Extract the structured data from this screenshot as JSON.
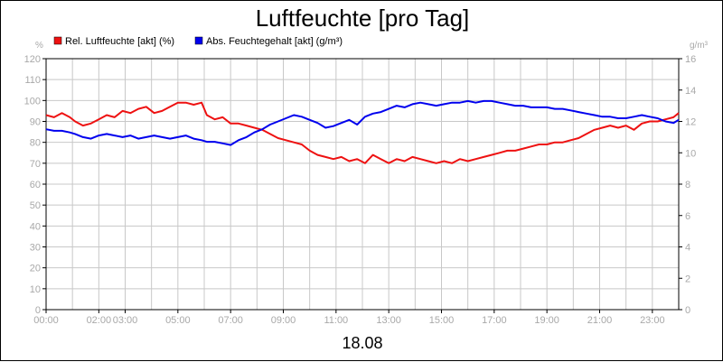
{
  "chart_data": {
    "type": "line",
    "title": "Luftfeuchte [pro Tag]",
    "date_label": "18.08",
    "grid": true,
    "legend_position": "top-left",
    "xlim": [
      0,
      24
    ],
    "left_axis": {
      "unit": "%",
      "ylim": [
        0,
        120
      ],
      "ticks": [
        0,
        10,
        20,
        30,
        40,
        50,
        60,
        70,
        80,
        90,
        100,
        110,
        120
      ]
    },
    "right_axis": {
      "unit": "g/m³",
      "ylim": [
        0,
        16
      ],
      "ticks": [
        0,
        2,
        4,
        6,
        8,
        10,
        12,
        14,
        16
      ]
    },
    "x_ticks": [
      {
        "label": "00:00",
        "value": 0
      },
      {
        "label": "02:00",
        "value": 2
      },
      {
        "label": "03:00",
        "value": 3
      },
      {
        "label": "05:00",
        "value": 5
      },
      {
        "label": "07:00",
        "value": 7
      },
      {
        "label": "09:00",
        "value": 9
      },
      {
        "label": "11:00",
        "value": 11
      },
      {
        "label": "13:00",
        "value": 13
      },
      {
        "label": "15:00",
        "value": 15
      },
      {
        "label": "17:00",
        "value": 17
      },
      {
        "label": "19:00",
        "value": 19
      },
      {
        "label": "21:00",
        "value": 21
      },
      {
        "label": "23:00",
        "value": 23
      }
    ],
    "series": [
      {
        "name": "Rel. Luftfeuchte [akt] (%)",
        "axis": "left",
        "color": "#ee1111",
        "x": [
          0,
          0.3,
          0.6,
          0.9,
          1.1,
          1.4,
          1.7,
          2.0,
          2.3,
          2.6,
          2.9,
          3.2,
          3.5,
          3.8,
          4.1,
          4.4,
          4.7,
          5.0,
          5.3,
          5.6,
          5.9,
          6.1,
          6.4,
          6.7,
          7.0,
          7.3,
          7.6,
          7.9,
          8.2,
          8.5,
          8.8,
          9.1,
          9.4,
          9.7,
          10.0,
          10.3,
          10.6,
          10.9,
          11.2,
          11.5,
          11.8,
          12.1,
          12.4,
          12.7,
          13.0,
          13.3,
          13.6,
          13.9,
          14.2,
          14.5,
          14.8,
          15.1,
          15.4,
          15.7,
          16.0,
          16.3,
          16.6,
          16.9,
          17.2,
          17.5,
          17.8,
          18.1,
          18.4,
          18.7,
          19.0,
          19.3,
          19.6,
          19.9,
          20.2,
          20.5,
          20.8,
          21.1,
          21.4,
          21.7,
          22.0,
          22.3,
          22.6,
          22.9,
          23.2,
          23.5,
          23.8,
          24.0
        ],
        "values": [
          93,
          92,
          94,
          92,
          90,
          88,
          89,
          91,
          93,
          92,
          95,
          94,
          96,
          97,
          94,
          95,
          97,
          99,
          99,
          98,
          99,
          93,
          91,
          92,
          89,
          89,
          88,
          87,
          86,
          84,
          82,
          81,
          80,
          79,
          76,
          74,
          73,
          72,
          73,
          71,
          72,
          70,
          74,
          72,
          70,
          72,
          71,
          73,
          72,
          71,
          70,
          71,
          70,
          72,
          71,
          72,
          73,
          74,
          75,
          76,
          76,
          77,
          78,
          79,
          79,
          80,
          80,
          81,
          82,
          84,
          86,
          87,
          88,
          87,
          88,
          86,
          89,
          90,
          90,
          91,
          92,
          94
        ]
      },
      {
        "name": "Abs. Feuchtegehalt [akt] (g/m³)",
        "axis": "right",
        "color": "#0000ee",
        "x": [
          0,
          0.3,
          0.6,
          0.9,
          1.1,
          1.4,
          1.7,
          2.0,
          2.3,
          2.6,
          2.9,
          3.2,
          3.5,
          3.8,
          4.1,
          4.4,
          4.7,
          5.0,
          5.3,
          5.6,
          5.9,
          6.1,
          6.4,
          6.7,
          7.0,
          7.3,
          7.6,
          7.9,
          8.2,
          8.5,
          8.8,
          9.1,
          9.4,
          9.7,
          10.0,
          10.3,
          10.6,
          10.9,
          11.2,
          11.5,
          11.8,
          12.1,
          12.4,
          12.7,
          13.0,
          13.3,
          13.6,
          13.9,
          14.2,
          14.5,
          14.8,
          15.1,
          15.4,
          15.7,
          16.0,
          16.3,
          16.6,
          16.9,
          17.2,
          17.5,
          17.8,
          18.1,
          18.4,
          18.7,
          19.0,
          19.3,
          19.6,
          19.9,
          20.2,
          20.5,
          20.8,
          21.1,
          21.4,
          21.7,
          22.0,
          22.3,
          22.6,
          22.9,
          23.2,
          23.5,
          23.8,
          24.0
        ],
        "values": [
          11.5,
          11.4,
          11.4,
          11.3,
          11.2,
          11.0,
          10.9,
          11.1,
          11.2,
          11.1,
          11.0,
          11.1,
          10.9,
          11.0,
          11.1,
          11.0,
          10.9,
          11.0,
          11.1,
          10.9,
          10.8,
          10.7,
          10.7,
          10.6,
          10.5,
          10.8,
          11.0,
          11.3,
          11.5,
          11.8,
          12.0,
          12.2,
          12.4,
          12.3,
          12.1,
          11.9,
          11.6,
          11.7,
          11.9,
          12.1,
          11.8,
          12.3,
          12.5,
          12.6,
          12.8,
          13.0,
          12.9,
          13.1,
          13.2,
          13.1,
          13.0,
          13.1,
          13.2,
          13.2,
          13.3,
          13.2,
          13.3,
          13.3,
          13.2,
          13.1,
          13.0,
          13.0,
          12.9,
          12.9,
          12.9,
          12.8,
          12.8,
          12.7,
          12.6,
          12.5,
          12.4,
          12.3,
          12.3,
          12.2,
          12.2,
          12.3,
          12.4,
          12.3,
          12.2,
          12.0,
          11.9,
          12.1
        ]
      }
    ]
  }
}
